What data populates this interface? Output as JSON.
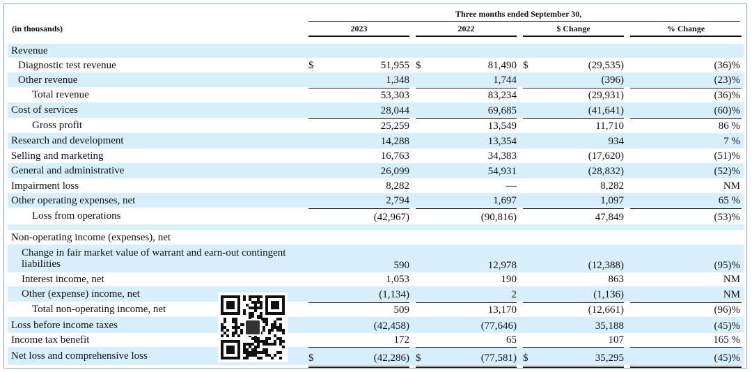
{
  "header": {
    "period": "Three months ended September 30,",
    "units": "(in thousands)",
    "columns": [
      "2023",
      "2022",
      "$ Change",
      "% Change"
    ]
  },
  "currency_symbol": "$",
  "rows": [
    {
      "label": "Revenue",
      "values": [
        "",
        "",
        "",
        ""
      ]
    },
    {
      "label": "Diagnostic test revenue",
      "values": [
        "51,955",
        "81,490",
        "(29,535)",
        "(36)%"
      ],
      "dollar": true
    },
    {
      "label": "Other revenue",
      "values": [
        "1,348",
        "1,744",
        "(396)",
        "(23)%"
      ]
    },
    {
      "label": "Total revenue",
      "values": [
        "53,303",
        "83,234",
        "(29,931)",
        "(36)%"
      ]
    },
    {
      "label": "Cost of services",
      "values": [
        "28,044",
        "69,685",
        "(41,641)",
        "(60)%"
      ]
    },
    {
      "label": "Gross profit",
      "values": [
        "25,259",
        "13,549",
        "11,710",
        "86 %"
      ]
    },
    {
      "label": "Research and development",
      "values": [
        "14,288",
        "13,354",
        "934",
        "7 %"
      ]
    },
    {
      "label": "Selling and marketing",
      "values": [
        "16,763",
        "34,383",
        "(17,620)",
        "(51)%"
      ]
    },
    {
      "label": "General and administrative",
      "values": [
        "26,099",
        "54,931",
        "(28,832)",
        "(52)%"
      ]
    },
    {
      "label": "Impairment loss",
      "values": [
        "8,282",
        "—",
        "8,282",
        "NM"
      ]
    },
    {
      "label": "Other operating expenses, net",
      "values": [
        "2,794",
        "1,697",
        "1,097",
        "65 %"
      ]
    },
    {
      "label": "Loss from operations",
      "values": [
        "(42,967)",
        "(90,816)",
        "47,849",
        "(53)%"
      ]
    },
    {
      "label": "",
      "values": [
        "",
        "",
        "",
        ""
      ]
    },
    {
      "label": "Non-operating income (expenses), net",
      "values": [
        "",
        "",
        "",
        ""
      ]
    },
    {
      "label": "Change in fair market value of warrant and earn-out contingent liabilities",
      "values": [
        "590",
        "12,978",
        "(12,388)",
        "(95)%"
      ]
    },
    {
      "label": "Interest income, net",
      "values": [
        "1,053",
        "190",
        "863",
        "NM"
      ]
    },
    {
      "label": "Other (expense) income, net",
      "values": [
        "(1,134)",
        "2",
        "(1,136)",
        "NM"
      ]
    },
    {
      "label": "Total non-operating income, net",
      "values": [
        "509",
        "13,170",
        "(12,661)",
        "(96)%"
      ]
    },
    {
      "label": "Loss before income taxes",
      "values": [
        "(42,458)",
        "(77,646)",
        "35,188",
        "(45)%"
      ]
    },
    {
      "label": "Income tax benefit",
      "values": [
        "172",
        "65",
        "107",
        "165 %"
      ]
    },
    {
      "label": "Net loss and comprehensive loss",
      "values": [
        "(42,286)",
        "(77,581)",
        "35,295",
        "(45)%"
      ],
      "dollar": true
    }
  ]
}
